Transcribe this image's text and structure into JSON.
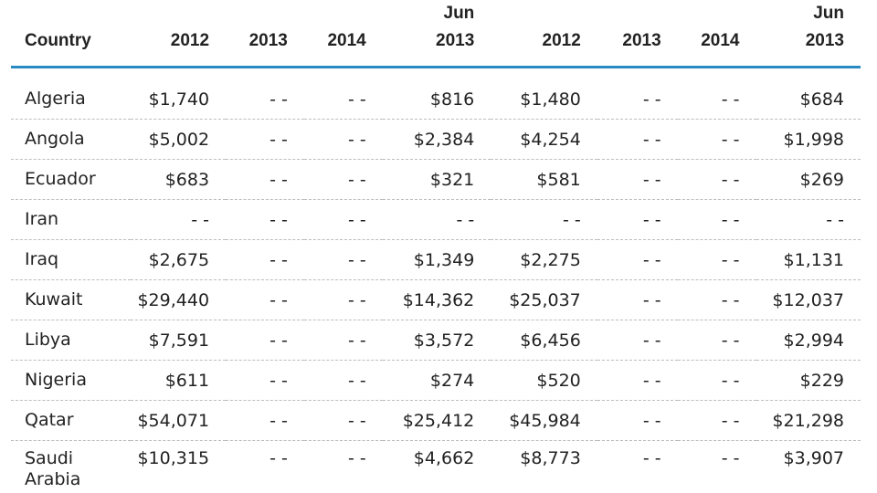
{
  "table": {
    "headers": [
      {
        "line1": "",
        "line2": "Country"
      },
      {
        "line1": "",
        "line2": "2012"
      },
      {
        "line1": "",
        "line2": "2013"
      },
      {
        "line1": "",
        "line2": "2014"
      },
      {
        "line1": "Jun",
        "line2": "2013"
      },
      {
        "line1": "",
        "line2": "2012"
      },
      {
        "line1": "",
        "line2": "2013"
      },
      {
        "line1": "",
        "line2": "2014"
      },
      {
        "line1": "Jun",
        "line2": "2013"
      }
    ],
    "rows": [
      {
        "country": "Algeria",
        "cells": [
          "$1,740",
          "- -",
          "- -",
          "$816",
          "$1,480",
          "- -",
          "- -",
          "$684"
        ]
      },
      {
        "country": "Angola",
        "cells": [
          "$5,002",
          "- -",
          "- -",
          "$2,384",
          "$4,254",
          "- -",
          "- -",
          "$1,998"
        ]
      },
      {
        "country": "Ecuador",
        "cells": [
          "$683",
          "- -",
          "- -",
          "$321",
          "$581",
          "- -",
          "- -",
          "$269"
        ]
      },
      {
        "country": "Iran",
        "cells": [
          "- -",
          "- -",
          "- -",
          "- -",
          "- -",
          "- -",
          "- -",
          "- -"
        ]
      },
      {
        "country": "Iraq",
        "cells": [
          "$2,675",
          "- -",
          "- -",
          "$1,349",
          "$2,275",
          "- -",
          "- -",
          "$1,131"
        ]
      },
      {
        "country": "Kuwait",
        "cells": [
          "$29,440",
          "- -",
          "- -",
          "$14,362",
          "$25,037",
          "- -",
          "- -",
          "$12,037"
        ]
      },
      {
        "country": "Libya",
        "cells": [
          "$7,591",
          "- -",
          "- -",
          "$3,572",
          "$6,456",
          "- -",
          "- -",
          "$2,994"
        ]
      },
      {
        "country": "Nigeria",
        "cells": [
          "$611",
          "- -",
          "- -",
          "$274",
          "$520",
          "- -",
          "- -",
          "$229"
        ]
      },
      {
        "country": "Qatar",
        "cells": [
          "$54,071",
          "- -",
          "- -",
          "$25,412",
          "$45,984",
          "- -",
          "- -",
          "$21,298"
        ]
      },
      {
        "country": "Saudi Arabia",
        "cells": [
          "$10,315",
          "- -",
          "- -",
          "$4,662",
          "$8,773",
          "- -",
          "- -",
          "$3,907"
        ]
      }
    ]
  },
  "colors": {
    "header_rule": "#2a8ac4",
    "row_divider": "#bdbdbd",
    "text": "#222222"
  }
}
